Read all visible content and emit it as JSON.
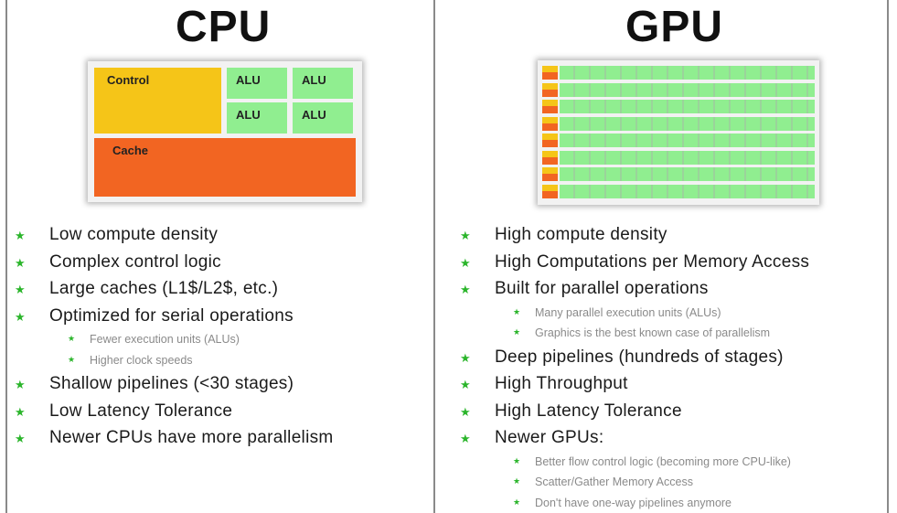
{
  "cpu": {
    "title": "CPU",
    "diagram": {
      "control": "Control",
      "alus": [
        "ALU",
        "ALU",
        "ALU",
        "ALU"
      ],
      "cache": "Cache"
    },
    "bullets": [
      {
        "text": "Low compute density",
        "level": 1
      },
      {
        "text": "Complex control logic",
        "level": 1
      },
      {
        "text": "Large caches (L1$/L2$, etc.)",
        "level": 1
      },
      {
        "text": "Optimized for serial operations",
        "level": 1
      },
      {
        "text": "Fewer execution units (ALUs)",
        "level": 2
      },
      {
        "text": "Higher clock speeds",
        "level": 2
      },
      {
        "text": "Shallow pipelines (<30 stages)",
        "level": 1
      },
      {
        "text": "Low Latency Tolerance",
        "level": 1
      },
      {
        "text": "Newer CPUs have more parallelism",
        "level": 1
      }
    ]
  },
  "gpu": {
    "title": "GPU",
    "diagram": {
      "rows": 8,
      "alus_per_row": 16
    },
    "bullets": [
      {
        "text": "High compute density",
        "level": 1
      },
      {
        "text": "High Computations per Memory Access",
        "level": 1
      },
      {
        "text": "Built for parallel operations",
        "level": 1
      },
      {
        "text": "Many parallel execution units (ALUs)",
        "level": 2
      },
      {
        "text": "Graphics is the best known case of parallelism",
        "level": 2
      },
      {
        "text": "Deep pipelines (hundreds of stages)",
        "level": 1
      },
      {
        "text": "High Throughput",
        "level": 1
      },
      {
        "text": "High Latency Tolerance",
        "level": 1
      },
      {
        "text": "Newer GPUs:",
        "level": 1
      },
      {
        "text": "Better flow control logic (becoming more CPU-like)",
        "level": 2
      },
      {
        "text": "Scatter/Gather Memory Access",
        "level": 2
      },
      {
        "text": "Don't have one-way pipelines anymore",
        "level": 2
      }
    ]
  },
  "colors": {
    "control": "#f5c518",
    "alu": "#90ee90",
    "cache": "#f26522",
    "bullet": "#2bb52b"
  },
  "icons": {
    "bullet": "star-icon"
  }
}
